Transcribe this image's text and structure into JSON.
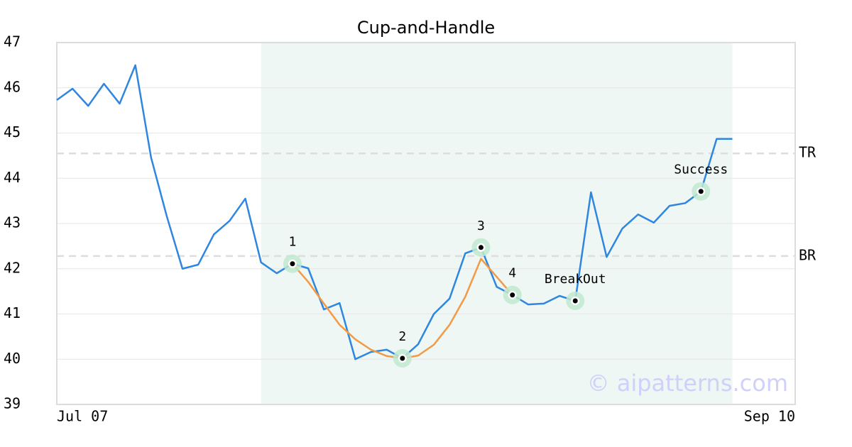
{
  "chart_data": {
    "type": "line",
    "title": "Cup-and-Handle",
    "x": [
      0,
      1,
      2,
      3,
      4,
      5,
      6,
      7,
      8,
      9,
      10,
      11,
      12,
      13,
      14,
      15,
      16,
      17,
      18,
      19,
      20,
      21,
      22,
      23,
      24,
      25,
      26,
      27,
      28,
      29,
      30,
      31,
      32,
      33,
      34,
      35,
      36,
      37,
      38,
      39,
      40,
      41,
      42,
      43
    ],
    "series": [
      {
        "color": "#2f86e0",
        "values": [
          45.73,
          45.98,
          45.6,
          46.09,
          45.65,
          46.5,
          44.46,
          43.16,
          42.0,
          42.09,
          42.76,
          43.06,
          43.55,
          42.14,
          41.9,
          42.11,
          42.01,
          41.1,
          41.24,
          40.0,
          40.16,
          40.21,
          40.02,
          40.33,
          41.0,
          41.34,
          42.34,
          42.47,
          41.6,
          41.42,
          41.21,
          41.23,
          41.4,
          41.29,
          43.69,
          42.26,
          42.89,
          43.2,
          43.02,
          43.39,
          43.45,
          43.71,
          44.87,
          44.87
        ]
      },
      {
        "color": "#f29a45",
        "values": [
          null,
          null,
          null,
          null,
          null,
          null,
          null,
          null,
          null,
          null,
          null,
          null,
          null,
          null,
          null,
          42.11,
          41.71,
          41.23,
          40.76,
          40.44,
          40.21,
          40.07,
          40.02,
          40.08,
          40.32,
          40.76,
          41.38,
          42.22,
          41.82,
          41.42,
          null,
          null,
          null,
          null,
          null,
          null,
          null,
          null,
          null,
          null,
          null,
          null,
          null,
          null
        ]
      }
    ],
    "xlim": [
      0,
      47
    ],
    "xticks": [
      {
        "value": 0,
        "label": "Jul 07"
      },
      {
        "value": 47,
        "label": "Sep 10"
      }
    ],
    "ylim": [
      39,
      47
    ],
    "yticks": [
      39,
      40,
      41,
      42,
      43,
      44,
      45,
      46,
      47
    ],
    "grid": true,
    "pattern_range": [
      13,
      43
    ],
    "pattern_color": "#eef7f3",
    "levels": [
      {
        "label": "TR",
        "value": 44.55
      },
      {
        "label": "BR",
        "value": 42.28
      }
    ],
    "points": [
      {
        "label": "1",
        "x": 15,
        "y": 42.11
      },
      {
        "label": "2",
        "x": 22,
        "y": 40.02
      },
      {
        "label": "3",
        "x": 27,
        "y": 42.47
      },
      {
        "label": "4",
        "x": 29,
        "y": 41.42
      },
      {
        "label": "BreakOut",
        "x": 33,
        "y": 41.29
      },
      {
        "label": "Success",
        "x": 41,
        "y": 43.71
      }
    ],
    "watermark": "© aipatterns.com"
  }
}
